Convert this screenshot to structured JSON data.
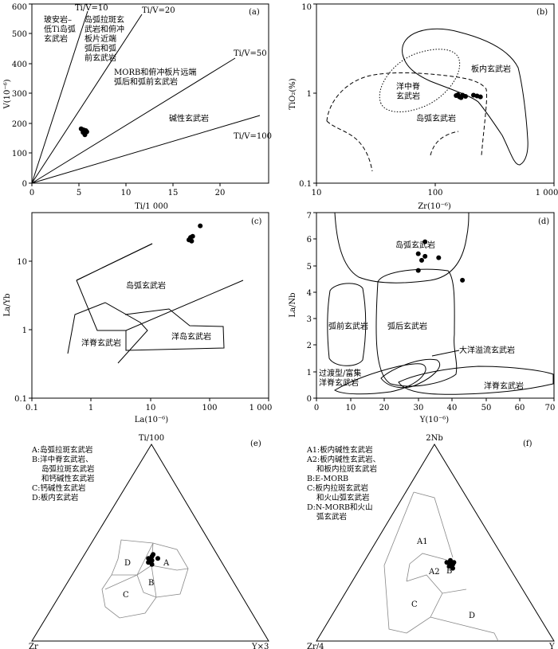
{
  "chart_data": [
    {
      "panel": "(a)",
      "type": "scatter",
      "xlabel": "Ti/1 000",
      "ylabel": "V(10⁻⁶)",
      "xlim": [
        0,
        25
      ],
      "ylim": [
        0,
        600
      ],
      "xticks": [
        "0",
        "5",
        "10",
        "15",
        "20"
      ],
      "yticks": [
        "0",
        "100",
        "200",
        "300",
        "400",
        "500",
        "600"
      ],
      "ratio_lines": [
        {
          "label": "Ti/V=10",
          "ratio": 10
        },
        {
          "label": "Ti/V=20",
          "ratio": 20
        },
        {
          "label": "Ti/V=50",
          "ratio": 50
        },
        {
          "label": "Ti/V=100",
          "ratio": 100
        }
      ],
      "field_labels": [
        {
          "lines": [
            "玻安岩–",
            "低Ti岛弧",
            "玄武岩"
          ]
        },
        {
          "lines": [
            "岛弧拉斑玄",
            "武岩和俯冲",
            "板片近端",
            "弧后和弧",
            "前玄武岩"
          ]
        },
        {
          "lines": [
            "MORB和俯冲板片远端",
            "弧后和弧前玄武岩"
          ]
        },
        {
          "lines": [
            "碱性玄武岩"
          ]
        }
      ],
      "points": [
        [
          5.2,
          182
        ],
        [
          5.5,
          178
        ],
        [
          5.7,
          176
        ],
        [
          5.4,
          170
        ],
        [
          5.8,
          172
        ],
        [
          5.6,
          162
        ],
        [
          5.3,
          180
        ]
      ]
    },
    {
      "panel": "(b)",
      "type": "scatter",
      "log_x": true,
      "log_y": true,
      "xlabel": "Zr(10⁻⁶)",
      "ylabel": "TiO₂(%)",
      "xlim": [
        10,
        1000
      ],
      "ylim": [
        0.1,
        10
      ],
      "xticks": [
        "10",
        "100",
        "1 000"
      ],
      "yticks": [
        "0.1",
        "1",
        "10"
      ],
      "field_labels": [
        {
          "lines": [
            "板内玄武岩"
          ]
        },
        {
          "lines": [
            "洋中脊",
            "玄武岩"
          ]
        },
        {
          "lines": [
            "岛弧玄武岩"
          ]
        }
      ],
      "points": [
        [
          150,
          0.95
        ],
        [
          160,
          0.92
        ],
        [
          170,
          0.96
        ],
        [
          165,
          0.9
        ],
        [
          180,
          0.93
        ],
        [
          210,
          0.96
        ],
        [
          225,
          0.94
        ],
        [
          240,
          0.92
        ],
        [
          155,
          0.97
        ]
      ]
    },
    {
      "panel": "(c)",
      "type": "scatter",
      "log_x": true,
      "log_y": true,
      "xlabel": "La(10⁻⁶)",
      "ylabel": "La/Yb",
      "xlim": [
        0.1,
        1000
      ],
      "ylim": [
        0.1,
        30
      ],
      "xticks": [
        "0.1",
        "1",
        "10",
        "100",
        "1 000"
      ],
      "yticks": [
        "0.1",
        "1",
        "10"
      ],
      "field_labels": [
        {
          "lines": [
            "岛弧玄武岩"
          ]
        },
        {
          "lines": [
            "洋脊玄武岩"
          ]
        },
        {
          "lines": [
            "洋岛玄武岩"
          ]
        }
      ],
      "points": [
        [
          45,
          13
        ],
        [
          48,
          14
        ],
        [
          50,
          12.5
        ],
        [
          47,
          13.5
        ],
        [
          52,
          14.5
        ],
        [
          70,
          20
        ]
      ]
    },
    {
      "panel": "(d)",
      "type": "scatter",
      "xlabel": "Y(10⁻⁶)",
      "ylabel": "La/Nb",
      "xlim": [
        0,
        70
      ],
      "ylim": [
        0,
        7
      ],
      "xticks": [
        "0",
        "10",
        "20",
        "30",
        "40",
        "50",
        "60",
        "70"
      ],
      "yticks": [
        "0",
        "1",
        "2",
        "3",
        "4",
        "5",
        "6",
        "7"
      ],
      "field_labels": [
        {
          "lines": [
            "岛弧玄武岩"
          ]
        },
        {
          "lines": [
            "弧前玄武岩"
          ]
        },
        {
          "lines": [
            "弧后玄武岩"
          ]
        },
        {
          "lines": [
            "大洋溢流玄武岩"
          ]
        },
        {
          "lines": [
            "过渡型/富集",
            "洋脊玄武岩"
          ]
        },
        {
          "lines": [
            "洋脊玄武岩"
          ]
        }
      ],
      "points": [
        [
          32,
          5.9
        ],
        [
          30,
          5.45
        ],
        [
          31,
          5.2
        ],
        [
          32,
          5.35
        ],
        [
          36,
          5.3
        ],
        [
          30,
          4.82
        ],
        [
          43,
          4.45
        ]
      ]
    },
    {
      "panel": "(e)",
      "type": "ternary",
      "apices": {
        "top": "Ti/100",
        "left": "Zr",
        "right": "Y×3"
      },
      "legend": [
        "A:岛弧拉斑玄武岩",
        "B:洋中脊玄武岩、",
        "岛弧拉斑玄武岩",
        "和钙碱性玄武岩",
        "C:钙碱性玄武岩",
        "D:板内玄武岩"
      ],
      "field_letters": [
        "A",
        "B",
        "C",
        "D"
      ],
      "points": [
        [
          0.42,
          0.3,
          0.28
        ],
        [
          0.4,
          0.31,
          0.29
        ],
        [
          0.41,
          0.29,
          0.3
        ],
        [
          0.43,
          0.28,
          0.29
        ],
        [
          0.39,
          0.3,
          0.31
        ],
        [
          0.44,
          0.27,
          0.29
        ],
        [
          0.42,
          0.26,
          0.32
        ]
      ]
    },
    {
      "panel": "(f)",
      "type": "ternary",
      "apices": {
        "top": "2Nb",
        "left": "Zr/4",
        "right": "Y"
      },
      "legend": [
        "A1:板内碱性玄武岩",
        "A2:板内碱性玄武岩、",
        "和板内拉斑玄武岩",
        "B:E-MORB",
        "C:板内拉斑玄武岩",
        "和火山弧玄武岩",
        "D:N-MORB和火山",
        "弧玄武岩"
      ],
      "field_letters": [
        "A1",
        "A2",
        "B",
        "C",
        "D"
      ],
      "points": [
        [
          0.4,
          0.25,
          0.35
        ],
        [
          0.39,
          0.24,
          0.37
        ],
        [
          0.41,
          0.23,
          0.36
        ],
        [
          0.38,
          0.25,
          0.37
        ],
        [
          0.4,
          0.22,
          0.38
        ],
        [
          0.37,
          0.24,
          0.39
        ],
        [
          0.39,
          0.23,
          0.38
        ]
      ]
    }
  ]
}
